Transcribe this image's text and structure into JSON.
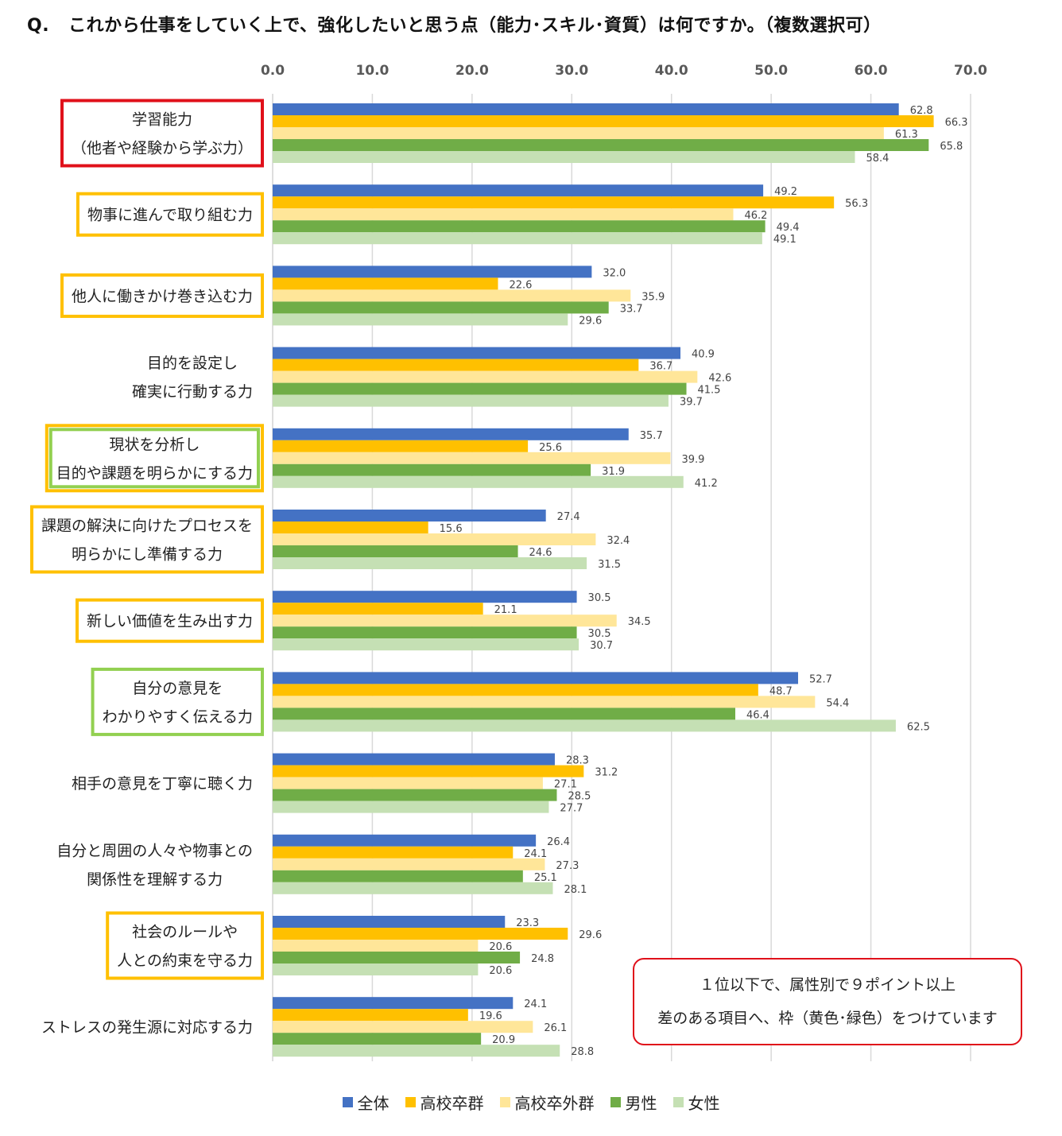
{
  "title": {
    "prefix": "Q.",
    "text": "これから仕事をしていく上で、強化したいと思う点（能力･スキル･資質）は何ですか。（複数選択可）"
  },
  "chart_data": {
    "type": "bar",
    "orientation": "horizontal",
    "xlim": [
      0,
      70
    ],
    "ticks": [
      "0.0",
      "10.0",
      "20.0",
      "30.0",
      "40.0",
      "50.0",
      "60.0",
      "70.0"
    ],
    "grid": true,
    "legend_position": "bottom",
    "categories": [
      {
        "lines": [
          "学習能力",
          "（他者や経験から学ぶ力）"
        ],
        "frame": "red"
      },
      {
        "lines": [
          "物事に進んで取り組む力"
        ],
        "frame": "yellow"
      },
      {
        "lines": [
          "他人に働きかけ巻き込む力"
        ],
        "frame": "yellow"
      },
      {
        "lines": [
          "目的を設定し",
          "確実に行動する力"
        ],
        "frame": "none"
      },
      {
        "lines": [
          "現状を分析し",
          "目的や課題を明らかにする力"
        ],
        "frame": "yellow-green"
      },
      {
        "lines": [
          "課題の解決に向けたプロセスを",
          "明らかにし準備する力"
        ],
        "frame": "yellow"
      },
      {
        "lines": [
          "新しい価値を生み出す力"
        ],
        "frame": "yellow"
      },
      {
        "lines": [
          "自分の意見を",
          "わかりやすく伝える力"
        ],
        "frame": "green"
      },
      {
        "lines": [
          "相手の意見を丁寧に聴く力"
        ],
        "frame": "none"
      },
      {
        "lines": [
          "自分と周囲の人々や物事との",
          "関係性を理解する力"
        ],
        "frame": "none"
      },
      {
        "lines": [
          "社会のルールや",
          "人との約束を守る力"
        ],
        "frame": "yellow"
      },
      {
        "lines": [
          "ストレスの発生源に対応する力"
        ],
        "frame": "none"
      }
    ],
    "series": [
      {
        "name": "全体",
        "color": "#4472c4",
        "values": [
          62.8,
          49.2,
          32.0,
          40.9,
          35.7,
          27.4,
          30.5,
          52.7,
          28.3,
          26.4,
          23.3,
          24.1
        ]
      },
      {
        "name": "高校卒群",
        "color": "#ffc000",
        "values": [
          66.3,
          56.3,
          22.6,
          36.7,
          25.6,
          15.6,
          21.1,
          48.7,
          31.2,
          24.1,
          29.6,
          19.6
        ]
      },
      {
        "name": "高校卒外群",
        "color": "#ffe699",
        "values": [
          61.3,
          46.2,
          35.9,
          42.6,
          39.9,
          32.4,
          34.5,
          54.4,
          27.1,
          27.3,
          20.6,
          26.1
        ]
      },
      {
        "name": "男性",
        "color": "#70ad47",
        "values": [
          65.8,
          49.4,
          33.7,
          41.5,
          31.9,
          24.6,
          30.5,
          46.4,
          28.5,
          25.1,
          24.8,
          20.9
        ]
      },
      {
        "name": "女性",
        "color": "#c5e0b4",
        "values": [
          58.4,
          49.1,
          29.6,
          39.7,
          41.2,
          31.5,
          30.7,
          62.5,
          27.7,
          28.1,
          20.6,
          28.8
        ]
      }
    ]
  },
  "frame_colors": {
    "red": "#e0101a",
    "yellow": "#ffc000",
    "green": "#92d050"
  },
  "note": {
    "line1": "１位以下で、属性別で９ポイント以上",
    "line2": "差のある項目へ、枠（黄色･緑色）をつけています"
  }
}
